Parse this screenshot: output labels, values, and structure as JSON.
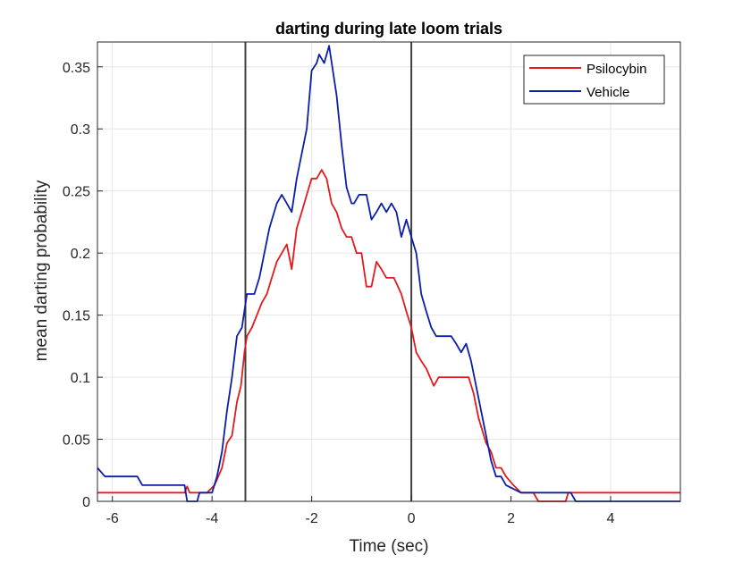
{
  "chart_data": {
    "type": "line",
    "title": "darting during late loom trials",
    "xlabel": "Time (sec)",
    "ylabel": "mean darting probability",
    "xlim": [
      -6.3,
      5.4
    ],
    "ylim": [
      0,
      0.37
    ],
    "xticks": [
      -6,
      -4,
      -2,
      0,
      2,
      4
    ],
    "xtick_labels": [
      "-6",
      "-4",
      "-2",
      "0",
      "2",
      "4"
    ],
    "yticks": [
      0,
      0.05,
      0.1,
      0.15,
      0.2,
      0.25,
      0.3,
      0.35
    ],
    "ytick_labels": [
      "0",
      "0.05",
      "0.1",
      "0.15",
      "0.2",
      "0.25",
      "0.3",
      "0.35"
    ],
    "grid": true,
    "legend_position": "top-right",
    "vertical_lines": [
      -3.33,
      0
    ],
    "series": [
      {
        "name": "Psilocybin",
        "color": "#e31a1c",
        "points": [
          [
            -6.3,
            0.007
          ],
          [
            -4.55,
            0.007
          ],
          [
            -4.5,
            0.012
          ],
          [
            -4.45,
            0.007
          ],
          [
            -4.1,
            0.007
          ],
          [
            -3.95,
            0.013
          ],
          [
            -3.8,
            0.027
          ],
          [
            -3.7,
            0.047
          ],
          [
            -3.6,
            0.053
          ],
          [
            -3.5,
            0.08
          ],
          [
            -3.42,
            0.093
          ],
          [
            -3.35,
            0.12
          ],
          [
            -3.3,
            0.133
          ],
          [
            -3.2,
            0.14
          ],
          [
            -3.0,
            0.16
          ],
          [
            -2.9,
            0.167
          ],
          [
            -2.8,
            0.18
          ],
          [
            -2.7,
            0.193
          ],
          [
            -2.6,
            0.2
          ],
          [
            -2.5,
            0.207
          ],
          [
            -2.4,
            0.187
          ],
          [
            -2.3,
            0.22
          ],
          [
            -2.2,
            0.233
          ],
          [
            -2.1,
            0.247
          ],
          [
            -2.0,
            0.26
          ],
          [
            -1.9,
            0.26
          ],
          [
            -1.8,
            0.267
          ],
          [
            -1.7,
            0.26
          ],
          [
            -1.6,
            0.24
          ],
          [
            -1.5,
            0.233
          ],
          [
            -1.4,
            0.22
          ],
          [
            -1.3,
            0.213
          ],
          [
            -1.2,
            0.213
          ],
          [
            -1.1,
            0.2
          ],
          [
            -1.0,
            0.2
          ],
          [
            -0.9,
            0.173
          ],
          [
            -0.8,
            0.173
          ],
          [
            -0.7,
            0.193
          ],
          [
            -0.6,
            0.187
          ],
          [
            -0.5,
            0.18
          ],
          [
            -0.35,
            0.18
          ],
          [
            -0.2,
            0.167
          ],
          [
            -0.1,
            0.153
          ],
          [
            0.0,
            0.14
          ],
          [
            0.1,
            0.12
          ],
          [
            0.2,
            0.113
          ],
          [
            0.3,
            0.107
          ],
          [
            0.45,
            0.093
          ],
          [
            0.55,
            0.1
          ],
          [
            1.15,
            0.1
          ],
          [
            1.25,
            0.087
          ],
          [
            1.35,
            0.067
          ],
          [
            1.5,
            0.047
          ],
          [
            1.6,
            0.04
          ],
          [
            1.7,
            0.027
          ],
          [
            1.8,
            0.027
          ],
          [
            1.9,
            0.02
          ],
          [
            2.05,
            0.013
          ],
          [
            2.2,
            0.007
          ],
          [
            2.45,
            0.007
          ],
          [
            2.55,
            0.0
          ],
          [
            3.1,
            0.0
          ],
          [
            3.15,
            0.007
          ],
          [
            5.4,
            0.007
          ]
        ]
      },
      {
        "name": "Vehicle",
        "color": "#0b1ea8",
        "points": [
          [
            -6.3,
            0.027
          ],
          [
            -6.15,
            0.02
          ],
          [
            -5.5,
            0.02
          ],
          [
            -5.4,
            0.013
          ],
          [
            -4.55,
            0.013
          ],
          [
            -4.5,
            0.0
          ],
          [
            -4.3,
            0.0
          ],
          [
            -4.25,
            0.007
          ],
          [
            -4.0,
            0.007
          ],
          [
            -3.9,
            0.02
          ],
          [
            -3.8,
            0.04
          ],
          [
            -3.7,
            0.073
          ],
          [
            -3.6,
            0.1
          ],
          [
            -3.5,
            0.133
          ],
          [
            -3.4,
            0.14
          ],
          [
            -3.3,
            0.167
          ],
          [
            -3.15,
            0.167
          ],
          [
            -3.05,
            0.18
          ],
          [
            -2.95,
            0.2
          ],
          [
            -2.85,
            0.22
          ],
          [
            -2.7,
            0.24
          ],
          [
            -2.6,
            0.247
          ],
          [
            -2.5,
            0.24
          ],
          [
            -2.4,
            0.233
          ],
          [
            -2.3,
            0.26
          ],
          [
            -2.2,
            0.28
          ],
          [
            -2.1,
            0.3
          ],
          [
            -2.0,
            0.347
          ],
          [
            -1.9,
            0.353
          ],
          [
            -1.85,
            0.36
          ],
          [
            -1.75,
            0.353
          ],
          [
            -1.65,
            0.367
          ],
          [
            -1.5,
            0.327
          ],
          [
            -1.4,
            0.287
          ],
          [
            -1.3,
            0.253
          ],
          [
            -1.2,
            0.24
          ],
          [
            -1.15,
            0.24
          ],
          [
            -1.05,
            0.247
          ],
          [
            -0.9,
            0.247
          ],
          [
            -0.8,
            0.227
          ],
          [
            -0.7,
            0.233
          ],
          [
            -0.6,
            0.24
          ],
          [
            -0.5,
            0.233
          ],
          [
            -0.4,
            0.24
          ],
          [
            -0.3,
            0.233
          ],
          [
            -0.2,
            0.213
          ],
          [
            -0.1,
            0.227
          ],
          [
            0.0,
            0.213
          ],
          [
            0.1,
            0.2
          ],
          [
            0.2,
            0.167
          ],
          [
            0.3,
            0.153
          ],
          [
            0.4,
            0.14
          ],
          [
            0.5,
            0.133
          ],
          [
            0.8,
            0.133
          ],
          [
            0.9,
            0.127
          ],
          [
            1.0,
            0.12
          ],
          [
            1.1,
            0.127
          ],
          [
            1.2,
            0.113
          ],
          [
            1.3,
            0.093
          ],
          [
            1.4,
            0.073
          ],
          [
            1.5,
            0.053
          ],
          [
            1.6,
            0.033
          ],
          [
            1.7,
            0.02
          ],
          [
            1.8,
            0.02
          ],
          [
            1.9,
            0.013
          ],
          [
            2.2,
            0.007
          ],
          [
            3.2,
            0.007
          ],
          [
            3.3,
            0.0
          ],
          [
            5.4,
            0.0
          ]
        ]
      }
    ]
  }
}
